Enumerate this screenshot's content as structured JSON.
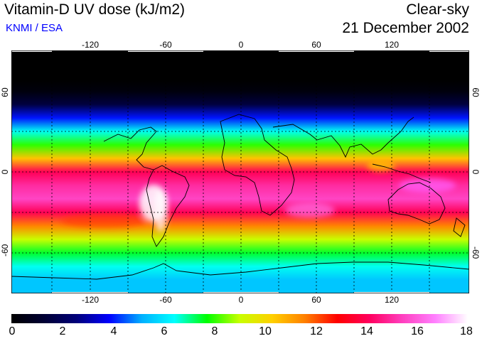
{
  "header": {
    "title": "Vitamin-D UV dose (kJ/m2)",
    "credit": "KNMI / ESA",
    "condition": "Clear-sky",
    "date": "21 December 2002"
  },
  "map": {
    "projection": "equirectangular",
    "lon_range": [
      -180,
      180
    ],
    "lat_range": [
      -90,
      90
    ],
    "lon_ticks": [
      "-120",
      "-60",
      "0",
      "60",
      "120"
    ],
    "lat_ticks": [
      "60",
      "0",
      "-60"
    ],
    "gridlines": "dotted",
    "lat_profile": [
      {
        "lat": 90,
        "value": 0
      },
      {
        "lat": 68,
        "value": 0
      },
      {
        "lat": 60,
        "value": 0.3
      },
      {
        "lat": 50,
        "value": 1.5
      },
      {
        "lat": 40,
        "value": 4
      },
      {
        "lat": 30,
        "value": 6.5
      },
      {
        "lat": 20,
        "value": 8
      },
      {
        "lat": 10,
        "value": 10.5
      },
      {
        "lat": 0,
        "value": 14
      },
      {
        "lat": -10,
        "value": 15
      },
      {
        "lat": -20,
        "value": 15.5
      },
      {
        "lat": -30,
        "value": 14
      },
      {
        "lat": -40,
        "value": 11.5
      },
      {
        "lat": -50,
        "value": 9
      },
      {
        "lat": -60,
        "value": 7.5
      },
      {
        "lat": -70,
        "value": 6.5
      },
      {
        "lat": -80,
        "value": 5.5
      },
      {
        "lat": -90,
        "value": 5.5
      }
    ]
  },
  "colorbar": {
    "min": 0,
    "max": 18,
    "labels": [
      "0",
      "2",
      "4",
      "6",
      "8",
      "10",
      "12",
      "14",
      "16",
      "18"
    ],
    "stops": [
      "#000000",
      "#000033",
      "#00007a",
      "#0000ff",
      "#00b0ff",
      "#00ffff",
      "#00ff00",
      "#c8ff00",
      "#ffd000",
      "#ff8000",
      "#ff0000",
      "#ff0060",
      "#ff40c0",
      "#ff80ff",
      "#ffffff"
    ]
  }
}
